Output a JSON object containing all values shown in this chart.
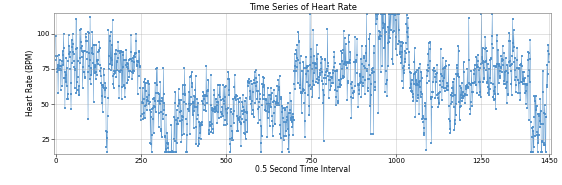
{
  "title": "Time Series of Heart Rate",
  "xlabel": "0.5 Second Time Interval",
  "ylabel": "Heart Rate (BPM)",
  "xlim": [
    -5,
    1455
  ],
  "ylim": [
    15,
    115
  ],
  "xticks": [
    0,
    250,
    500,
    750,
    1000,
    1250,
    1450
  ],
  "yticks": [
    25,
    50,
    75,
    100
  ],
  "color": "#4e8fca",
  "marker_size": 1.5,
  "alpha": 0.9,
  "title_fontsize": 6,
  "label_fontsize": 5.5,
  "tick_fontsize": 5,
  "figsize": [
    5.62,
    1.85
  ],
  "dpi": 100,
  "n_points": 1450,
  "seed": 7
}
